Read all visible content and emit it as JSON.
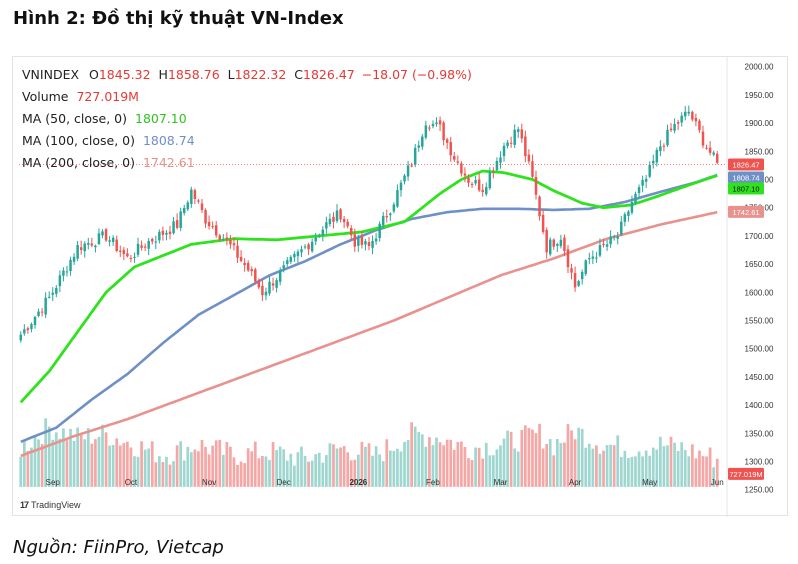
{
  "figure_title": "Hình 2: Đồ thị kỹ thuật VN-Index",
  "source": "Nguồn: FiinPro, Vietcap",
  "watermark": "TradingView",
  "legend": {
    "symbol": "VNINDEX",
    "open_label": "O",
    "open": "1845.32",
    "high_label": "H",
    "high": "1858.76",
    "low_label": "L",
    "low": "1822.32",
    "close_label": "C",
    "close": "1826.47",
    "change": "−18.07 (−0.98%)",
    "volume_label": "Volume",
    "volume": "727.019M",
    "ma50_label": "MA (50, close, 0)",
    "ma50": "1807.10",
    "ma100_label": "MA (100, close, 0)",
    "ma100": "1808.74",
    "ma200_label": "MA (200, close, 0)",
    "ma200": "1742.61"
  },
  "colors": {
    "up": "#26a69a",
    "down": "#ef5350",
    "vol_up": "#9fd6cf",
    "vol_down": "#f4a7a5",
    "ma50": "#2ee31d",
    "ma100": "#6f8fc7",
    "ma200": "#e8928e",
    "price_label": "#ef5350"
  },
  "chart_data": {
    "type": "candlestick",
    "ylim": [
      1230,
      2010
    ],
    "y_ticks": [
      2000,
      1950,
      1900,
      1850,
      1800,
      1750,
      1700,
      1650,
      1600,
      1550,
      1500,
      1450,
      1400,
      1350,
      1300,
      1250
    ],
    "x_labels": [
      "Sep",
      "Oct",
      "Nov",
      "Dec",
      "2026",
      "Feb",
      "Mar",
      "Apr",
      "May",
      "Jun"
    ],
    "price_tags": [
      {
        "value": "1826.47",
        "color": "#ef5350",
        "y": 1826.47
      },
      {
        "value": "1808.74",
        "color": "#6f8fc7",
        "y": 1808.74
      },
      {
        "value": "1807.10",
        "color": "#2ee31d",
        "y": 1807.1
      },
      {
        "value": "1742.61",
        "color": "#e8928e",
        "y": 1742.61
      },
      {
        "value": "727.019M",
        "color": "#ef5350",
        "y": 1278
      }
    ],
    "ma50_anchors": [
      [
        0,
        1405
      ],
      [
        8,
        1460
      ],
      [
        16,
        1530
      ],
      [
        24,
        1600
      ],
      [
        32,
        1645
      ],
      [
        40,
        1665
      ],
      [
        48,
        1685
      ],
      [
        60,
        1695
      ],
      [
        72,
        1693
      ],
      [
        84,
        1700
      ],
      [
        96,
        1707
      ],
      [
        108,
        1725
      ],
      [
        118,
        1775
      ],
      [
        124,
        1800
      ],
      [
        130,
        1815
      ],
      [
        136,
        1812
      ],
      [
        144,
        1800
      ],
      [
        150,
        1780
      ],
      [
        158,
        1758
      ],
      [
        164,
        1750
      ],
      [
        172,
        1755
      ],
      [
        180,
        1772
      ],
      [
        188,
        1790
      ],
      [
        196,
        1807
      ]
    ],
    "ma100_anchors": [
      [
        0,
        1335
      ],
      [
        10,
        1360
      ],
      [
        20,
        1410
      ],
      [
        30,
        1455
      ],
      [
        40,
        1510
      ],
      [
        50,
        1560
      ],
      [
        60,
        1595
      ],
      [
        70,
        1630
      ],
      [
        80,
        1655
      ],
      [
        90,
        1685
      ],
      [
        100,
        1710
      ],
      [
        110,
        1730
      ],
      [
        120,
        1742
      ],
      [
        130,
        1748
      ],
      [
        140,
        1748
      ],
      [
        150,
        1746
      ],
      [
        160,
        1748
      ],
      [
        170,
        1760
      ],
      [
        180,
        1778
      ],
      [
        190,
        1795
      ],
      [
        196,
        1808
      ]
    ],
    "ma200_anchors": [
      [
        0,
        1310
      ],
      [
        15,
        1345
      ],
      [
        30,
        1375
      ],
      [
        45,
        1410
      ],
      [
        60,
        1445
      ],
      [
        75,
        1480
      ],
      [
        90,
        1515
      ],
      [
        105,
        1550
      ],
      [
        120,
        1590
      ],
      [
        135,
        1630
      ],
      [
        150,
        1660
      ],
      [
        165,
        1695
      ],
      [
        180,
        1720
      ],
      [
        196,
        1742
      ]
    ],
    "price_anchors": [
      [
        0,
        1525
      ],
      [
        8,
        1590
      ],
      [
        16,
        1680
      ],
      [
        24,
        1700
      ],
      [
        30,
        1660
      ],
      [
        36,
        1690
      ],
      [
        44,
        1720
      ],
      [
        48,
        1780
      ],
      [
        52,
        1730
      ],
      [
        58,
        1690
      ],
      [
        64,
        1640
      ],
      [
        68,
        1600
      ],
      [
        74,
        1640
      ],
      [
        80,
        1680
      ],
      [
        86,
        1720
      ],
      [
        90,
        1740
      ],
      [
        94,
        1690
      ],
      [
        98,
        1680
      ],
      [
        104,
        1750
      ],
      [
        110,
        1830
      ],
      [
        114,
        1905
      ],
      [
        118,
        1890
      ],
      [
        122,
        1840
      ],
      [
        126,
        1800
      ],
      [
        130,
        1785
      ],
      [
        136,
        1860
      ],
      [
        140,
        1890
      ],
      [
        144,
        1800
      ],
      [
        148,
        1680
      ],
      [
        152,
        1700
      ],
      [
        156,
        1610
      ],
      [
        160,
        1660
      ],
      [
        164,
        1680
      ],
      [
        168,
        1700
      ],
      [
        172,
        1760
      ],
      [
        176,
        1800
      ],
      [
        180,
        1860
      ],
      [
        184,
        1895
      ],
      [
        188,
        1920
      ],
      [
        192,
        1870
      ],
      [
        196,
        1826
      ]
    ],
    "volume_anchors": [
      [
        0,
        0.55
      ],
      [
        8,
        0.85
      ],
      [
        16,
        0.7
      ],
      [
        24,
        0.75
      ],
      [
        32,
        0.6
      ],
      [
        40,
        0.45
      ],
      [
        50,
        0.6
      ],
      [
        60,
        0.45
      ],
      [
        70,
        0.5
      ],
      [
        80,
        0.4
      ],
      [
        90,
        0.55
      ],
      [
        100,
        0.45
      ],
      [
        110,
        0.75
      ],
      [
        118,
        0.7
      ],
      [
        126,
        0.55
      ],
      [
        134,
        0.6
      ],
      [
        142,
        0.7
      ],
      [
        146,
        0.75
      ],
      [
        150,
        0.6
      ],
      [
        156,
        0.8
      ],
      [
        164,
        0.6
      ],
      [
        172,
        0.55
      ],
      [
        180,
        0.6
      ],
      [
        186,
        0.55
      ],
      [
        196,
        0.4
      ]
    ]
  }
}
